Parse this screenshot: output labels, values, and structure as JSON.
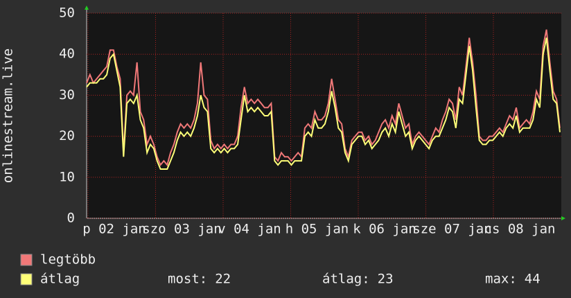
{
  "chart_data": {
    "type": "line",
    "y_label": "onlinestream.live",
    "x_labels": [
      "p 02 jan",
      "szo 03 jan",
      "v 04 jan",
      "h 05 jan",
      "k 06 jan",
      "sze 07 jan",
      "cs 08 jan"
    ],
    "ylim": [
      0,
      50
    ],
    "yticks": [
      0,
      10,
      20,
      30,
      40,
      50
    ],
    "grid": true,
    "series": [
      {
        "name": "legtöbb",
        "color": "#f07878",
        "values": [
          33,
          35,
          33,
          34,
          35,
          36,
          37,
          41,
          41,
          37,
          34,
          16,
          30,
          31,
          30,
          38,
          26,
          24,
          18,
          20,
          18,
          15,
          13,
          14,
          13,
          16,
          18,
          21,
          23,
          22,
          23,
          22,
          24,
          28,
          38,
          30,
          29,
          19,
          17,
          18,
          17,
          18,
          17,
          18,
          18,
          20,
          27,
          32,
          28,
          29,
          28,
          29,
          28,
          27,
          27,
          28,
          15,
          14,
          16,
          15,
          15,
          14,
          15,
          16,
          15,
          22,
          23,
          22,
          26,
          24,
          24,
          25,
          28,
          34,
          29,
          24,
          23,
          17,
          15,
          19,
          20,
          21,
          21,
          19,
          20,
          18,
          19,
          21,
          23,
          24,
          22,
          25,
          23,
          28,
          25,
          22,
          23,
          18,
          20,
          21,
          20,
          19,
          18,
          20,
          22,
          21,
          24,
          26,
          29,
          28,
          24,
          32,
          30,
          37,
          44,
          38,
          30,
          20,
          19,
          19,
          20,
          20,
          21,
          22,
          21,
          23,
          25,
          24,
          27,
          22,
          23,
          24,
          23,
          26,
          31,
          29,
          42,
          46,
          38,
          31,
          29,
          22
        ]
      },
      {
        "name": "átlag",
        "color": "#ffff78",
        "values": [
          32,
          33,
          33,
          33,
          34,
          34,
          35,
          39,
          40,
          36,
          32,
          15,
          28,
          29,
          28,
          30,
          24,
          22,
          16,
          18,
          17,
          14,
          12,
          12,
          12,
          14,
          16,
          19,
          21,
          20,
          21,
          20,
          22,
          25,
          30,
          27,
          26,
          17,
          16,
          17,
          16,
          17,
          16,
          17,
          17,
          18,
          24,
          30,
          26,
          27,
          26,
          27,
          26,
          25,
          25,
          26,
          14,
          13,
          14,
          14,
          14,
          13,
          14,
          14,
          14,
          20,
          21,
          20,
          24,
          22,
          22,
          23,
          26,
          31,
          27,
          22,
          21,
          16,
          14,
          18,
          19,
          20,
          20,
          18,
          19,
          17,
          18,
          19,
          21,
          22,
          20,
          23,
          21,
          26,
          23,
          20,
          21,
          17,
          19,
          20,
          19,
          18,
          17,
          19,
          20,
          20,
          22,
          24,
          27,
          26,
          22,
          29,
          28,
          35,
          42,
          36,
          27,
          19,
          18,
          18,
          19,
          19,
          20,
          21,
          20,
          22,
          23,
          22,
          25,
          21,
          22,
          22,
          22,
          24,
          29,
          27,
          40,
          44,
          36,
          29,
          28,
          21
        ]
      }
    ],
    "stats": [
      {
        "label": "most:",
        "value": 22
      },
      {
        "label": "átlag:",
        "value": 23
      },
      {
        "label": "max:",
        "value": 44
      }
    ]
  }
}
